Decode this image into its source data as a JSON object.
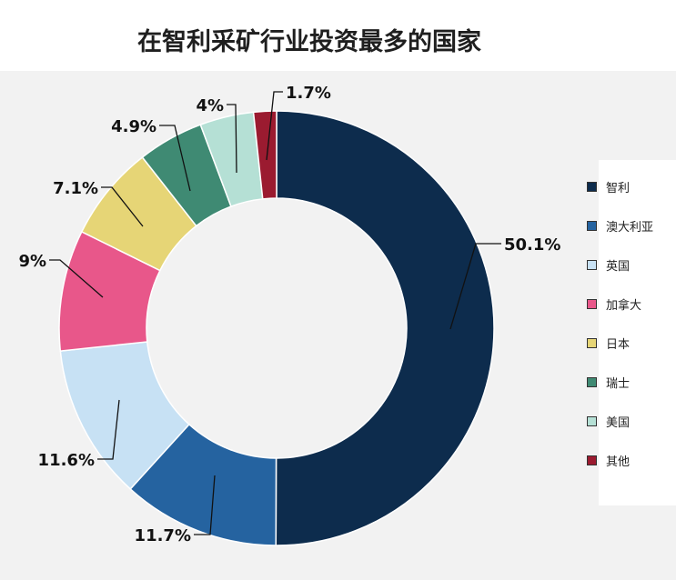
{
  "chart_data": {
    "type": "pie",
    "variant": "donut",
    "title": "在智利采矿行业投资最多的国家",
    "legend_position": "right",
    "slices": [
      {
        "name": "智利",
        "value": 50.1,
        "label": "50.1%",
        "color": "#0d2c4d"
      },
      {
        "name": "澳大利亚",
        "value": 11.7,
        "label": "11.7%",
        "color": "#2563a0"
      },
      {
        "name": "英国",
        "value": 11.6,
        "label": "11.6%",
        "color": "#c7e1f4"
      },
      {
        "name": "加拿大",
        "value": 9,
        "label": "9%",
        "color": "#e8578a"
      },
      {
        "name": "日本",
        "value": 7.1,
        "label": "7.1%",
        "color": "#e6d576"
      },
      {
        "name": "瑞士",
        "value": 4.9,
        "label": "4.9%",
        "color": "#3f8a73"
      },
      {
        "name": "美国",
        "value": 4,
        "label": "4%",
        "color": "#b5e0d5"
      },
      {
        "name": "其他",
        "value": 1.7,
        "label": "1.7%",
        "color": "#9b1b30"
      }
    ]
  }
}
